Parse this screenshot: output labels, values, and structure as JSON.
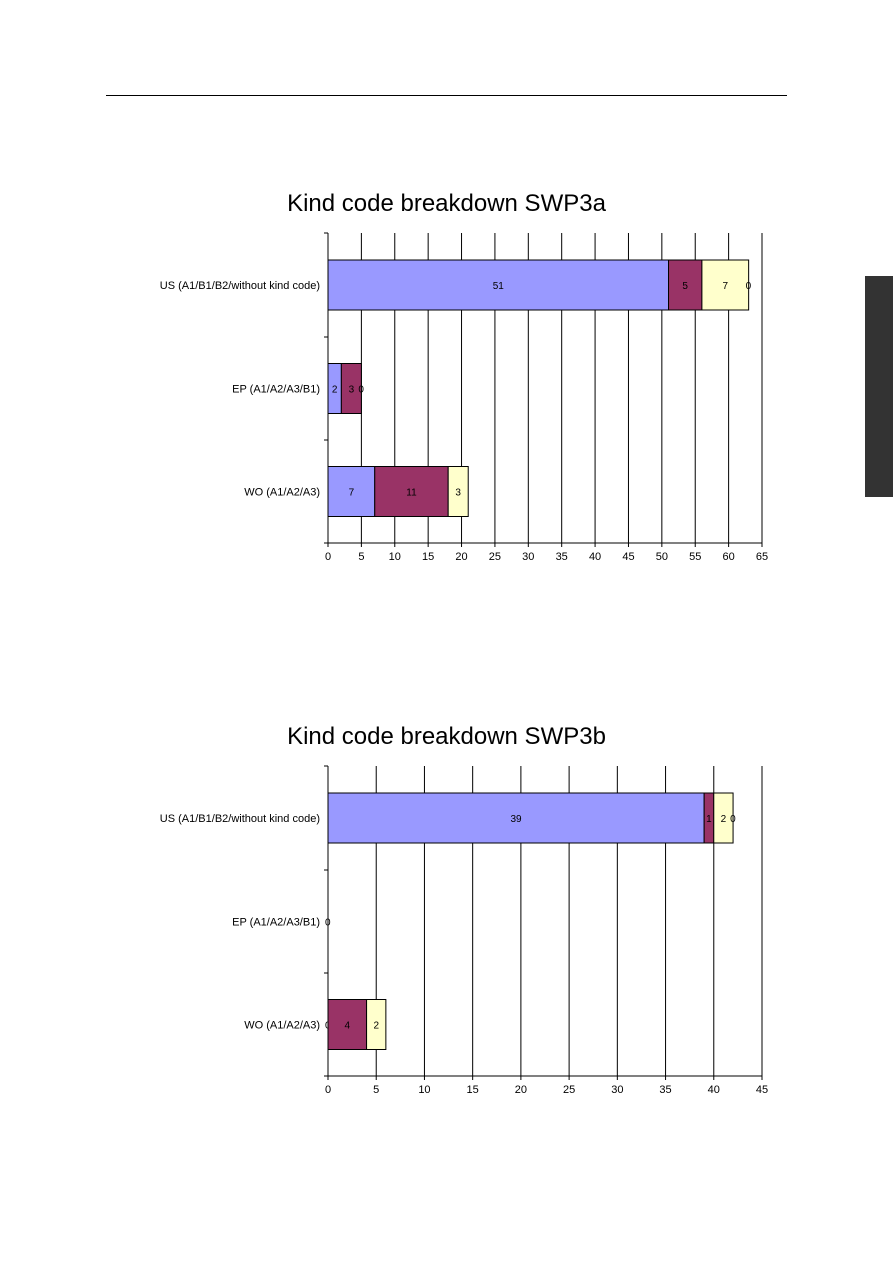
{
  "chart_data": [
    {
      "type": "bar",
      "orientation": "horizontal",
      "stacked": true,
      "title": "Kind code breakdown SWP3a",
      "categories": [
        "US (A1/B1/B2/without kind code)",
        "EP (A1/A2/A3/B1)",
        "WO (A1/A2/A3)"
      ],
      "series": [
        {
          "color": "#9999ff",
          "values": [
            51,
            2,
            7
          ]
        },
        {
          "color": "#993366",
          "values": [
            5,
            3,
            11
          ]
        },
        {
          "color": "#ffffcc",
          "values": [
            7,
            0,
            3
          ]
        },
        {
          "color": "#ffffff",
          "values": [
            0,
            null,
            null
          ]
        }
      ],
      "data_labels": [
        [
          "51",
          "5",
          "7",
          "0"
        ],
        [
          "2",
          "3",
          "0",
          ""
        ],
        [
          "7",
          "11",
          "3",
          ""
        ]
      ],
      "xticks": [
        0,
        5,
        10,
        15,
        20,
        25,
        30,
        35,
        40,
        45,
        50,
        55,
        60,
        65
      ],
      "xlim": [
        0,
        65
      ],
      "grid": "vertical",
      "legend": "none"
    },
    {
      "type": "bar",
      "orientation": "horizontal",
      "stacked": true,
      "title": "Kind code breakdown SWP3b",
      "categories": [
        "US (A1/B1/B2/without kind code)",
        "EP (A1/A2/A3/B1)",
        "WO (A1/A2/A3)"
      ],
      "series": [
        {
          "color": "#9999ff",
          "values": [
            39,
            0,
            0
          ]
        },
        {
          "color": "#993366",
          "values": [
            1,
            null,
            4
          ]
        },
        {
          "color": "#ffffcc",
          "values": [
            2,
            null,
            2
          ]
        },
        {
          "color": "#ffffff",
          "values": [
            0,
            null,
            null
          ]
        }
      ],
      "data_labels": [
        [
          "39",
          "1",
          "2",
          "0"
        ],
        [
          "0",
          "",
          "",
          ""
        ],
        [
          "0",
          "4",
          "2",
          ""
        ]
      ],
      "xticks": [
        0,
        5,
        10,
        15,
        20,
        25,
        30,
        35,
        40,
        45
      ],
      "xlim": [
        0,
        45
      ],
      "grid": "vertical",
      "legend": "none"
    }
  ],
  "page": {
    "side_tab_color": "#333333"
  }
}
